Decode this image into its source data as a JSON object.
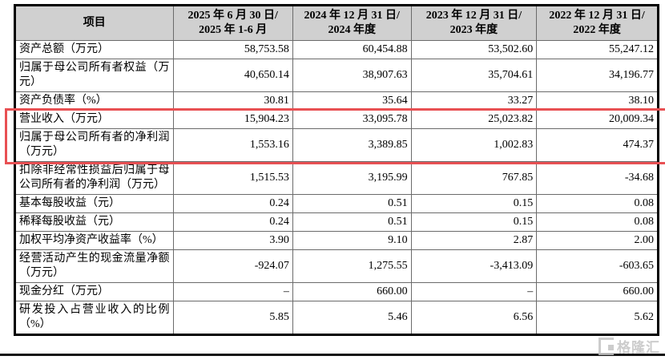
{
  "table": {
    "header": [
      {
        "line1": "项目",
        "line2": ""
      },
      {
        "line1": "2025 年 6 月 30 日/",
        "line2": "2025 年 1-6 月"
      },
      {
        "line1": "2024 年 12 月 31 日/",
        "line2": "2024 年度"
      },
      {
        "line1": "2023 年 12 月 31 日/",
        "line2": "2023 年度"
      },
      {
        "line1": "2022 年 12 月 31 日/",
        "line2": "2022 年度"
      }
    ],
    "rows": [
      {
        "label": "资产总额（万元）",
        "values": [
          "58,753.58",
          "60,454.88",
          "53,502.60",
          "55,247.12"
        ],
        "highlight": false
      },
      {
        "label": "归属于母公司所有者权益（万元）",
        "values": [
          "40,650.14",
          "38,907.63",
          "35,704.61",
          "34,196.77"
        ],
        "highlight": false
      },
      {
        "label": "资产负债率（%）",
        "values": [
          "30.81",
          "35.64",
          "33.27",
          "38.10"
        ],
        "highlight": false
      },
      {
        "label": "营业收入（万元）",
        "values": [
          "15,904.23",
          "33,095.78",
          "25,023.82",
          "20,009.34"
        ],
        "highlight": true
      },
      {
        "label": "归属于母公司所有者的净利润（万元）",
        "values": [
          "1,553.16",
          "3,389.85",
          "1,002.83",
          "474.37"
        ],
        "highlight": true
      },
      {
        "label": "扣除非经常性损益后归属于母公司所有者的净利润（万元）",
        "values": [
          "1,515.53",
          "3,195.99",
          "767.85",
          "-34.68"
        ],
        "highlight": false
      },
      {
        "label": "基本每股收益（元）",
        "values": [
          "0.24",
          "0.51",
          "0.15",
          "0.08"
        ],
        "highlight": false
      },
      {
        "label": "稀释每股收益（元）",
        "values": [
          "0.24",
          "0.51",
          "0.15",
          "0.08"
        ],
        "highlight": false
      },
      {
        "label": "加权平均净资产收益率（%）",
        "values": [
          "3.90",
          "9.10",
          "2.87",
          "2.00"
        ],
        "highlight": false
      },
      {
        "label": "经营活动产生的现金流量净额（万元）",
        "values": [
          "-924.07",
          "1,275.55",
          "-3,413.09",
          "-603.65"
        ],
        "highlight": false
      },
      {
        "label": "现金分红（万元）",
        "values": [
          "–",
          "660.00",
          "–",
          "660.00"
        ],
        "highlight": false
      },
      {
        "label": "研发投入占营业收入的比例（%）",
        "values": [
          "5.85",
          "5.46",
          "6.56",
          "5.62"
        ],
        "highlight": false
      }
    ]
  },
  "watermark": {
    "text": "格隆汇"
  },
  "colors": {
    "header_bg": "#d0d0d0",
    "border_inner": "#6b6b6b",
    "border_outer": "#000000",
    "highlight_red": "#e85053",
    "watermark_gray": "#c4c4c4"
  }
}
